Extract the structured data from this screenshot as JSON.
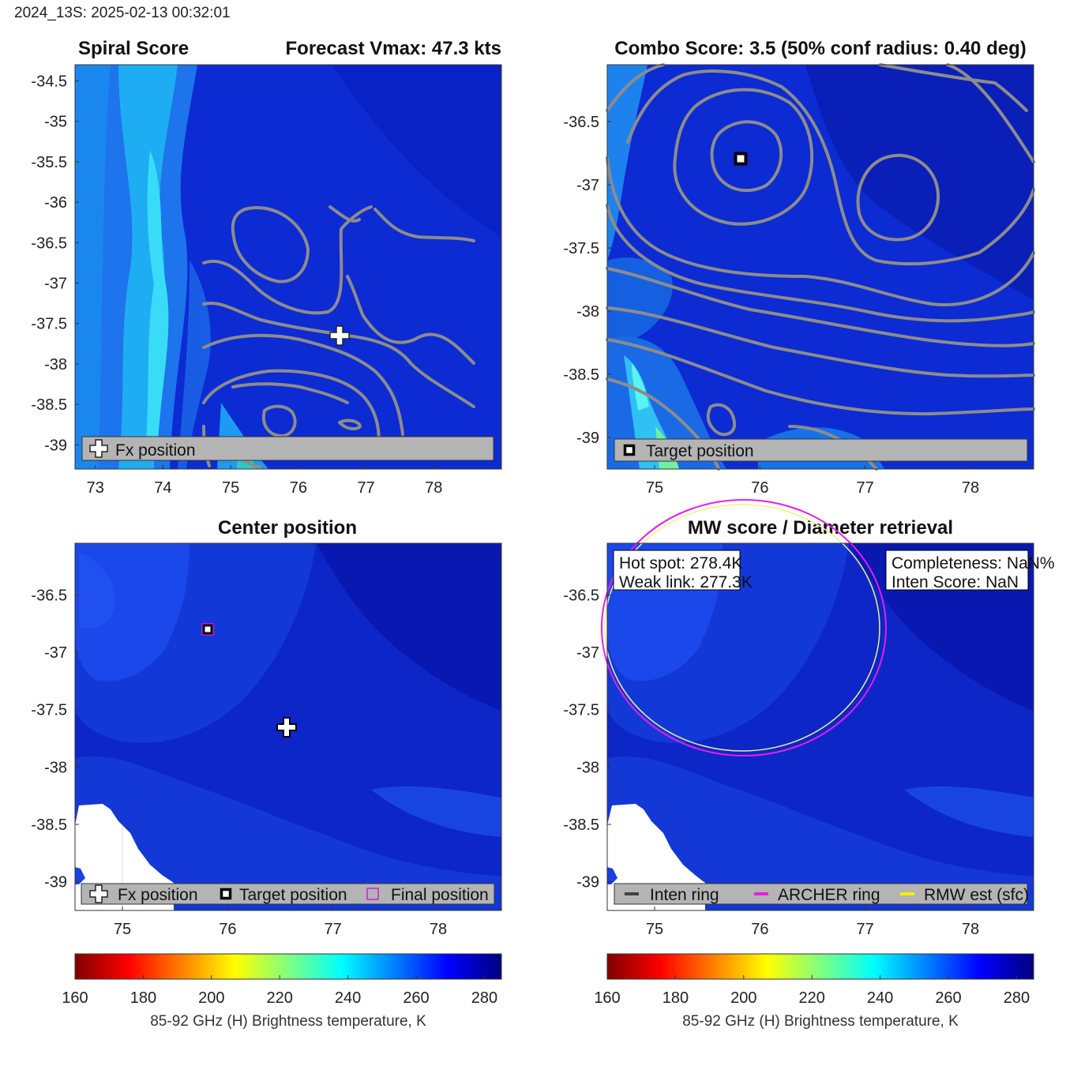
{
  "header": {
    "stamp": "2024_13S: 2025-02-13 00:32:01"
  },
  "colors": {
    "contour": "#8c8c8c",
    "legend_bg": "#b4b4b4",
    "final_marker": "#d21ed2",
    "archer_ring": "#e61ee6",
    "rmw_ring": "#f0f08c",
    "inten_ring": "#444444"
  },
  "chart_data": [
    {
      "id": "spiral",
      "type": "heatmap",
      "title_left": "Spiral Score",
      "title_right": "Forecast Vmax: 47.3 kts",
      "xlim": [
        72.7,
        79.0
      ],
      "ylim": [
        -39.3,
        -34.3
      ],
      "xticks": [
        73,
        74,
        75,
        76,
        77,
        78
      ],
      "yticks": [
        -34.5,
        -35,
        -35.5,
        -36,
        -36.5,
        -37,
        -37.5,
        -38,
        -38.5,
        -39
      ],
      "legend": [
        {
          "marker": "plus",
          "label": "Fx position"
        }
      ],
      "fx_position": [
        76.6,
        -37.63
      ]
    },
    {
      "id": "combo",
      "type": "heatmap",
      "title": "Combo Score: 3.5  (50% conf radius: 0.40 deg)",
      "xlim": [
        74.55,
        78.6
      ],
      "ylim": [
        -39.25,
        -36.05
      ],
      "xticks": [
        75,
        76,
        77,
        78
      ],
      "yticks": [
        -36.5,
        -37,
        -37.5,
        -38,
        -38.5,
        -39
      ],
      "legend": [
        {
          "marker": "square",
          "label": "Target position"
        }
      ],
      "target_position": [
        75.82,
        -36.79
      ]
    },
    {
      "id": "center",
      "type": "heatmap",
      "title": "Center position",
      "xlim": [
        74.55,
        78.6
      ],
      "ylim": [
        -39.25,
        -36.05
      ],
      "xticks": [
        75,
        76,
        77,
        78
      ],
      "yticks": [
        -36.5,
        -37,
        -37.5,
        -38,
        -38.5,
        -39
      ],
      "legend": [
        {
          "marker": "plus",
          "label": "Fx position"
        },
        {
          "marker": "square",
          "label": "Target position"
        },
        {
          "marker": "pink-square",
          "label": "Final position"
        }
      ],
      "fx_position": [
        76.57,
        -37.64
      ],
      "target_position": [
        75.82,
        -36.79
      ]
    },
    {
      "id": "mw",
      "type": "heatmap",
      "title": "MW score / Diameter retrieval",
      "xlim": [
        74.55,
        78.6
      ],
      "ylim": [
        -39.25,
        -36.05
      ],
      "xticks": [
        75,
        76,
        77,
        78
      ],
      "yticks": [
        -36.5,
        -37,
        -37.5,
        -38,
        -38.5,
        -39
      ],
      "hot_spot": "Hot spot: 278.4K",
      "weak_link": "Weak link: 277.3K",
      "completeness": "Completeness: NaN%",
      "inten_score": "Inten Score: NaN",
      "legend": [
        {
          "marker": "inten",
          "label": "Inten ring"
        },
        {
          "marker": "archer",
          "label": "ARCHER ring"
        },
        {
          "marker": "rmw",
          "label": "RMW est (sfc)"
        }
      ]
    }
  ],
  "colorbar": {
    "label": "85-92 GHz (H) Brightness temperature, K",
    "range": [
      160,
      285
    ],
    "ticks": [
      160,
      180,
      200,
      220,
      240,
      260,
      280
    ]
  }
}
